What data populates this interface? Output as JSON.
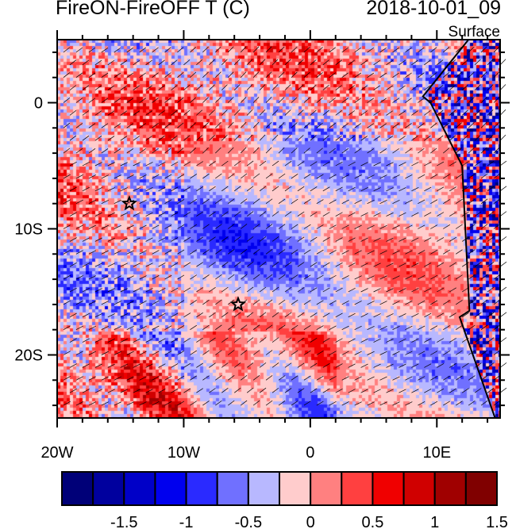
{
  "chart_data": {
    "type": "heatmap",
    "title": "FireON-FireOFF T (C)",
    "time_label": "2018-10-01_09",
    "level_label": "Surface",
    "xlim": [
      -20,
      15
    ],
    "ylim": [
      -25,
      5
    ],
    "x_ticks": [
      {
        "value": -20,
        "label": "20W"
      },
      {
        "value": -10,
        "label": "10W"
      },
      {
        "value": 0,
        "label": "0"
      },
      {
        "value": 10,
        "label": "10E"
      }
    ],
    "y_ticks": [
      {
        "value": 0,
        "label": "0"
      },
      {
        "value": -10,
        "label": "10S"
      },
      {
        "value": -20,
        "label": "20S"
      }
    ],
    "colorbar": {
      "levels": [
        -1.75,
        -1.5,
        -1.25,
        -1,
        -0.75,
        -0.5,
        -0.25,
        0,
        0.25,
        0.5,
        0.75,
        1,
        1.25,
        1.5,
        1.75
      ],
      "colors": [
        "#000078",
        "#00009e",
        "#0000c8",
        "#0000ee",
        "#2a2aff",
        "#7070ff",
        "#b8b8ff",
        "#ffcccc",
        "#ff8080",
        "#ff4040",
        "#f00000",
        "#d00000",
        "#a00000",
        "#800000"
      ],
      "tick_labels": [
        {
          "value": -1.5,
          "label": "-1.5"
        },
        {
          "value": -1,
          "label": "-1"
        },
        {
          "value": -0.5,
          "label": "-0.5"
        },
        {
          "value": 0,
          "label": "0"
        },
        {
          "value": 0.5,
          "label": "0.5"
        },
        {
          "value": 1,
          "label": "1"
        },
        {
          "value": 1.5,
          "label": "1.5"
        }
      ]
    },
    "markers": [
      {
        "type": "star",
        "lon": -14.3,
        "lat": -8
      },
      {
        "type": "star",
        "lon": -5.7,
        "lat": -16
      }
    ],
    "overlay": "wind vectors (southeasterly trades)"
  }
}
